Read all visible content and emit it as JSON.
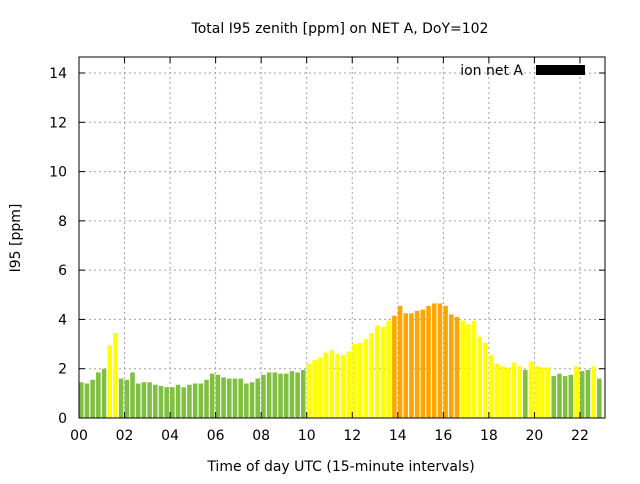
{
  "chart_data": {
    "type": "bar",
    "title": "Total I95 zenith [ppm] on NET A, DoY=102",
    "xlabel": "Time of day UTC (15-minute intervals)",
    "ylabel": "I95 [ppm]",
    "xlim": [
      0,
      23.1
    ],
    "ylim": [
      0,
      14.65
    ],
    "xticks": [
      0,
      2,
      4,
      6,
      8,
      10,
      12,
      14,
      16,
      18,
      20,
      22
    ],
    "xtick_labels": [
      "00",
      "02",
      "04",
      "06",
      "08",
      "10",
      "12",
      "14",
      "16",
      "18",
      "20",
      "22"
    ],
    "yticks": [
      0,
      2,
      4,
      6,
      8,
      10,
      12,
      14
    ],
    "ytick_labels": [
      "0",
      "2",
      "4",
      "6",
      "8",
      "10",
      "12",
      "14"
    ],
    "grid": true,
    "legend": {
      "placement": "top-right",
      "entries": [
        {
          "name": "ion net A",
          "color": "#000000"
        }
      ]
    },
    "bar_interval_hours": 0.25,
    "color_thresholds": {
      "green_max": 2.0,
      "yellow_max": 4.0
    },
    "colors": {
      "green": "#80c040",
      "yellow": "#ffff00",
      "orange": "#ffa500"
    },
    "values": [
      1.45,
      1.4,
      1.55,
      1.85,
      2.0,
      2.95,
      3.45,
      1.6,
      1.55,
      1.85,
      1.4,
      1.45,
      1.45,
      1.35,
      1.3,
      1.25,
      1.25,
      1.35,
      1.25,
      1.35,
      1.4,
      1.4,
      1.55,
      1.8,
      1.75,
      1.65,
      1.6,
      1.6,
      1.6,
      1.4,
      1.45,
      1.6,
      1.75,
      1.85,
      1.85,
      1.8,
      1.8,
      1.9,
      1.85,
      1.95,
      2.2,
      2.35,
      2.45,
      2.65,
      2.75,
      2.6,
      2.55,
      2.7,
      3.0,
      3.05,
      3.2,
      3.45,
      3.75,
      3.7,
      3.95,
      4.15,
      4.55,
      4.25,
      4.25,
      4.35,
      4.4,
      4.55,
      4.65,
      4.65,
      4.55,
      4.2,
      4.1,
      3.95,
      3.8,
      3.95,
      3.3,
      3.05,
      2.55,
      2.2,
      2.1,
      2.05,
      2.25,
      2.1,
      1.95,
      2.3,
      2.1,
      2.05,
      2.05,
      1.7,
      1.8,
      1.7,
      1.75,
      2.1,
      1.9,
      1.95,
      2.1,
      1.6
    ]
  }
}
